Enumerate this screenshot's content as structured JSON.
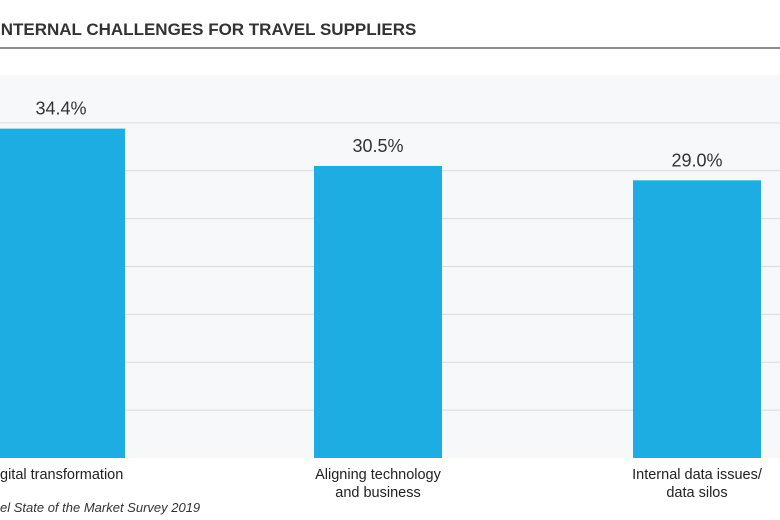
{
  "chart_data": {
    "type": "bar",
    "title": "INTERNAL CHALLENGES FOR TRAVEL SUPPLIERS",
    "categories": [
      [
        "gital transformation"
      ],
      [
        "Aligning technology",
        "and business"
      ],
      [
        "Internal data issues/",
        "data silos"
      ]
    ],
    "values": [
      34.4,
      30.5,
      29.0
    ],
    "value_labels": [
      "34.4%",
      "30.5%",
      "29.0%"
    ],
    "ylim": [
      0,
      40
    ],
    "ytick_step": 5,
    "grid": true,
    "xlabel": "",
    "ylabel": "",
    "source": "el State of the Market Survey 2019",
    "colors": {
      "bar": "#1eade3",
      "plot_bg": "#f6f8f9",
      "grid": "#d9dcde",
      "rule": "#666666"
    }
  }
}
